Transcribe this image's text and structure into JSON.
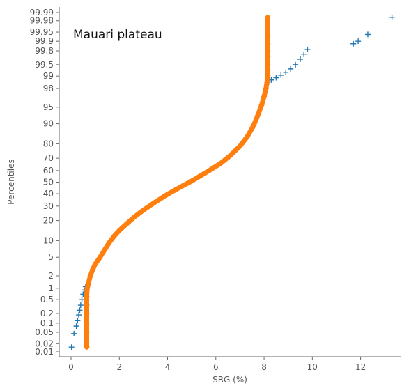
{
  "chart_data": {
    "type": "scatter",
    "title": "",
    "annotation": "Mauari plateau",
    "xlabel": "SRG (%)",
    "ylabel": "Percentiles",
    "xlim": [
      -0.5,
      13.8
    ],
    "y_scale": "normal-probability",
    "ylim": [
      0.01,
      99.99
    ],
    "x_ticks": [
      0,
      2,
      4,
      6,
      8,
      10,
      12
    ],
    "y_ticks": [
      0.01,
      0.02,
      0.05,
      0.1,
      0.2,
      0.5,
      1,
      2,
      5,
      10,
      20,
      30,
      40,
      50,
      60,
      70,
      80,
      90,
      95,
      98,
      99,
      99.5,
      99.8,
      99.9,
      99.95,
      99.98,
      99.99
    ],
    "grid": false,
    "legend": "none",
    "marker": "plus",
    "series": [
      {
        "color": "#1f77b4",
        "points": [
          [
            0.02,
            0.015
          ],
          [
            0.12,
            0.045
          ],
          [
            0.22,
            0.08
          ],
          [
            0.27,
            0.12
          ],
          [
            0.32,
            0.18
          ],
          [
            0.36,
            0.25
          ],
          [
            0.4,
            0.35
          ],
          [
            0.45,
            0.5
          ],
          [
            0.5,
            0.7
          ],
          [
            0.55,
            0.9
          ],
          [
            0.6,
            1.1
          ],
          [
            8.2,
            98.6
          ],
          [
            8.3,
            98.75
          ],
          [
            8.5,
            98.9
          ],
          [
            8.7,
            99.05
          ],
          [
            8.9,
            99.2
          ],
          [
            9.1,
            99.35
          ],
          [
            9.3,
            99.5
          ],
          [
            9.5,
            99.65
          ],
          [
            9.65,
            99.75
          ],
          [
            9.8,
            99.82
          ],
          [
            11.7,
            99.88
          ],
          [
            11.9,
            99.9
          ],
          [
            12.3,
            99.94
          ],
          [
            13.3,
            99.985
          ]
        ]
      },
      {
        "color": "#ff7f0e",
        "points": [
          [
            0.65,
            0.015
          ],
          [
            0.65,
            0.05
          ],
          [
            0.65,
            0.1
          ],
          [
            0.65,
            0.2
          ],
          [
            0.65,
            0.35
          ],
          [
            0.65,
            0.6
          ],
          [
            0.66,
            0.9
          ],
          [
            0.7,
            1.2
          ],
          [
            0.8,
            2
          ],
          [
            0.9,
            2.8
          ],
          [
            1.0,
            3.6
          ],
          [
            1.2,
            5
          ],
          [
            1.4,
            7
          ],
          [
            1.6,
            9.5
          ],
          [
            1.8,
            12
          ],
          [
            2.0,
            14.5
          ],
          [
            2.3,
            18
          ],
          [
            2.6,
            22
          ],
          [
            3.0,
            27
          ],
          [
            3.4,
            32
          ],
          [
            3.8,
            37
          ],
          [
            4.0,
            39.5
          ],
          [
            4.3,
            43
          ],
          [
            4.6,
            46.5
          ],
          [
            5.0,
            51
          ],
          [
            5.4,
            56
          ],
          [
            5.8,
            61
          ],
          [
            6.2,
            66
          ],
          [
            6.6,
            72
          ],
          [
            7.0,
            78.5
          ],
          [
            7.3,
            84
          ],
          [
            7.55,
            89
          ],
          [
            7.75,
            93
          ],
          [
            7.9,
            95.5
          ],
          [
            8.0,
            97
          ],
          [
            8.08,
            98
          ],
          [
            8.12,
            98.6
          ],
          [
            8.15,
            99.0
          ],
          [
            8.15,
            99.3
          ],
          [
            8.15,
            99.5
          ],
          [
            8.15,
            99.7
          ],
          [
            8.15,
            99.8
          ],
          [
            8.15,
            99.88
          ],
          [
            8.15,
            99.93
          ],
          [
            8.15,
            99.985
          ]
        ]
      }
    ]
  }
}
